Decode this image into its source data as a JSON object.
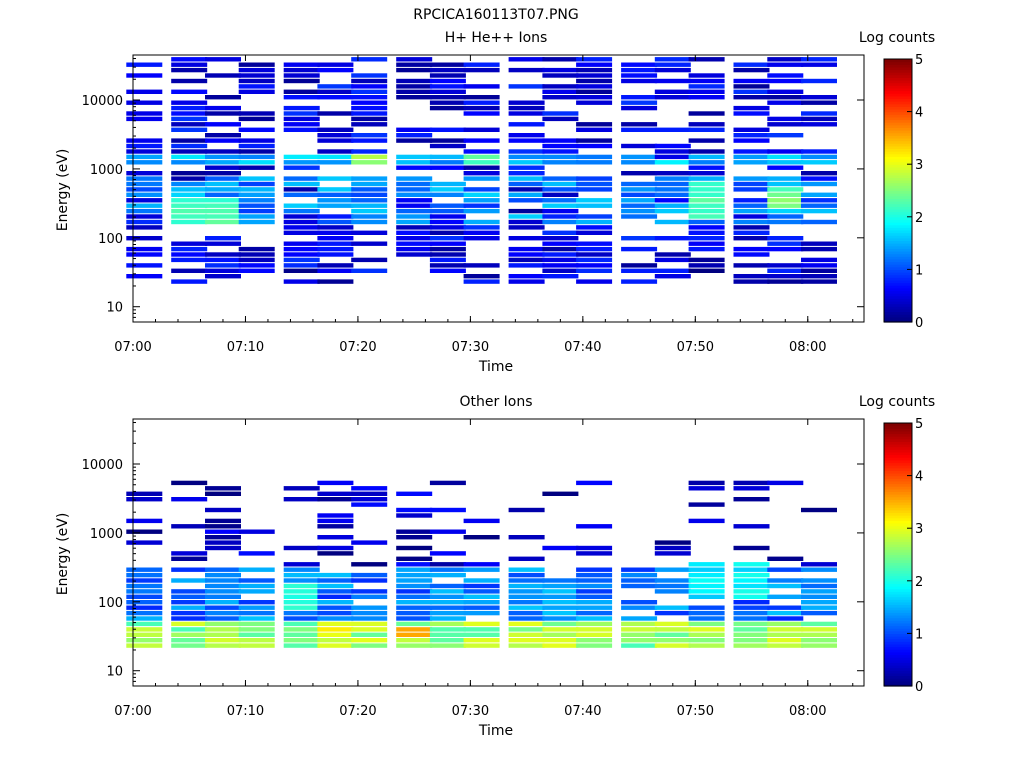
{
  "page_title": "RPCICA160113T07.PNG",
  "chart_data": [
    {
      "type": "heatmap",
      "title": "H+ He++ Ions",
      "xlabel": "Time",
      "ylabel": "Energy (eV)",
      "x_ticks": [
        "07:00",
        "07:10",
        "07:20",
        "07:30",
        "07:40",
        "07:50",
        "08:00"
      ],
      "x_range": [
        "07:00",
        "08:05"
      ],
      "y_scale": "log",
      "y_ticks": [
        "10",
        "100",
        "1000",
        "10000"
      ],
      "y_range": [
        6,
        45000
      ],
      "colorbar": {
        "label": "Log counts",
        "range": [
          0,
          5
        ],
        "ticks": [
          "0",
          "1",
          "2",
          "3",
          "4",
          "5"
        ]
      },
      "time_bins": [
        "07:01",
        "07:05",
        "07:08",
        "07:11",
        "07:15",
        "07:18",
        "07:21",
        "07:25",
        "07:28",
        "07:31",
        "07:35",
        "07:38",
        "07:41",
        "07:45",
        "07:48",
        "07:51",
        "07:55",
        "07:58",
        "08:01"
      ],
      "bands": [
        {
          "e_lo": 20,
          "e_hi": 45000,
          "level": 0.5,
          "density": 0.6
        },
        {
          "e_lo": 1100,
          "e_hi": 1700,
          "level": 1.6,
          "density": 0.95
        },
        {
          "e_lo": 150,
          "e_hi": 800,
          "level": 1.3,
          "density": 0.8
        },
        {
          "e_lo": 30,
          "e_hi": 110,
          "level": 0.4,
          "density": 0.5
        }
      ],
      "hotspots": [
        {
          "time": "07:07",
          "e_lo": 150,
          "e_hi": 350,
          "level": 2.2
        },
        {
          "time": "07:21",
          "e_lo": 1100,
          "e_hi": 1600,
          "level": 2.6
        },
        {
          "time": "07:32",
          "e_lo": 1100,
          "e_hi": 1600,
          "level": 2.3
        },
        {
          "time": "07:52",
          "e_lo": 200,
          "e_hi": 600,
          "level": 2.2
        },
        {
          "time": "07:58",
          "e_lo": 250,
          "e_hi": 500,
          "level": 2.4
        }
      ]
    },
    {
      "type": "heatmap",
      "title": "Other Ions",
      "xlabel": "Time",
      "ylabel": "Energy (eV)",
      "x_ticks": [
        "07:00",
        "07:10",
        "07:20",
        "07:30",
        "07:40",
        "07:50",
        "08:00"
      ],
      "x_range": [
        "07:00",
        "08:05"
      ],
      "y_scale": "log",
      "y_ticks": [
        "10",
        "100",
        "1000",
        "10000"
      ],
      "y_range": [
        6,
        45000
      ],
      "colorbar": {
        "label": "Log counts",
        "range": [
          0,
          5
        ],
        "ticks": [
          "0",
          "1",
          "2",
          "3",
          "4",
          "5"
        ]
      },
      "time_bins": [
        "07:01",
        "07:05",
        "07:08",
        "07:11",
        "07:15",
        "07:18",
        "07:21",
        "07:25",
        "07:28",
        "07:31",
        "07:35",
        "07:38",
        "07:41",
        "07:45",
        "07:48",
        "07:51",
        "07:55",
        "07:58",
        "08:01"
      ],
      "bands": [
        {
          "e_lo": 20,
          "e_hi": 50,
          "level": 2.6,
          "density": 1.0
        },
        {
          "e_lo": 50,
          "e_hi": 300,
          "level": 1.2,
          "density": 0.85
        },
        {
          "e_lo": 300,
          "e_hi": 6000,
          "level": 0.3,
          "density": 0.25
        }
      ],
      "hotspots": [
        {
          "time": "07:18",
          "e_lo": 28,
          "e_hi": 45,
          "level": 3.2
        },
        {
          "time": "07:25",
          "e_lo": 28,
          "e_hi": 45,
          "level": 3.4
        },
        {
          "time": "07:15",
          "e_lo": 80,
          "e_hi": 200,
          "level": 2.1
        },
        {
          "time": "07:53",
          "e_lo": 100,
          "e_hi": 400,
          "level": 1.8
        }
      ]
    }
  ]
}
